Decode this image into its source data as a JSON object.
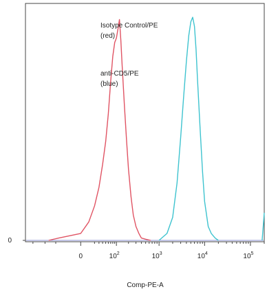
{
  "chart_data": {
    "type": "line",
    "title": "",
    "xlabel": "Comp-PE-A",
    "ylabel": "",
    "x_scale": "biexponential",
    "xlim": [
      -300,
      200000
    ],
    "ylim": [
      0,
      100
    ],
    "grid": false,
    "x_ticks": [
      {
        "value": 0,
        "base": "0",
        "exp": ""
      },
      {
        "value": 100,
        "base": "10",
        "exp": "2"
      },
      {
        "value": 1000,
        "base": "10",
        "exp": "3"
      },
      {
        "value": 10000,
        "base": "10",
        "exp": "4"
      },
      {
        "value": 100000,
        "base": "10",
        "exp": "5"
      }
    ],
    "y_ticks": [
      {
        "value": 0,
        "label": "0"
      }
    ],
    "annotations": [
      {
        "lines": [
          "Isotype Control/PE",
          "(red)"
        ]
      },
      {
        "lines": [
          "anti-CD5/PE",
          "(blue)"
        ]
      }
    ],
    "series": [
      {
        "color": "#e05363",
        "x": [
          -80,
          -40,
          0,
          10,
          20,
          30,
          40,
          50,
          60,
          70,
          80,
          90,
          100,
          110,
          120,
          130,
          140,
          160,
          180,
          200,
          230,
          260,
          300,
          350,
          400,
          500,
          650
        ],
        "y": [
          0,
          1,
          3,
          8,
          15,
          23,
          33,
          43,
          55,
          69,
          80,
          86,
          88,
          92,
          96,
          87,
          76,
          58,
          43,
          31,
          19,
          11,
          6,
          3,
          1,
          0.5,
          0
        ]
      },
      {
        "color": "#3ec3cf",
        "x": [
          1000,
          1500,
          2000,
          2500,
          3000,
          3500,
          4000,
          4500,
          5000,
          5500,
          6000,
          6500,
          7000,
          8000,
          9000,
          10000,
          12000,
          14000,
          17000,
          20000
        ],
        "y": [
          0,
          3,
          10,
          25,
          45,
          63,
          78,
          89,
          95,
          97,
          93,
          83,
          70,
          48,
          30,
          17,
          6,
          3,
          1,
          0
        ]
      },
      {
        "color": "#3ec3cf",
        "x": [
          180000,
          190000,
          200000
        ],
        "y": [
          0,
          6,
          12
        ]
      }
    ]
  }
}
